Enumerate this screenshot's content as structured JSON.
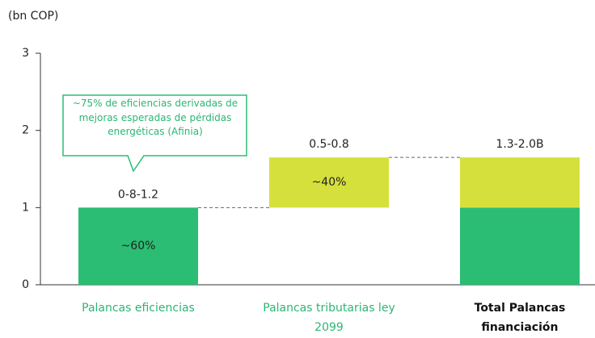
{
  "chart_data": {
    "type": "waterfall",
    "y_axis_label": "(bn COP)",
    "categories": [
      "Palancas eficiencias",
      "Palancas tributarias ley 2099",
      "Total Palancas financiación"
    ],
    "category_colors": [
      "#2bb673",
      "#2bb673",
      "#111111"
    ],
    "values": [
      1.0,
      0.65,
      null
    ],
    "colors": [
      "#2bbd73",
      "#d6e03c"
    ],
    "range_labels": [
      "0-8-1.2",
      "0.5-0.8",
      "1.3-2.0B"
    ],
    "share_labels": [
      "~60%",
      "~40%",
      null
    ],
    "annotation": "~75% de eficiencias derivadas de mejoras esperadas de pérdidas energéticas (Afinia)",
    "ylim": [
      0,
      3
    ],
    "yticks": [
      0,
      1,
      2,
      3
    ]
  }
}
